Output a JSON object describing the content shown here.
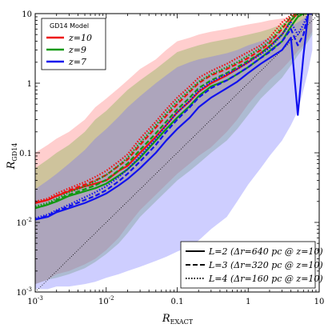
{
  "chart_data": {
    "type": "line",
    "xlabel": "R_EXACT",
    "ylabel": "R_GD14",
    "xscale": "log",
    "yscale": "log",
    "xlim": [
      0.001,
      10
    ],
    "ylim": [
      0.001,
      10
    ],
    "grid": false,
    "x_tick_labels": [
      "10^-3",
      "10^-2",
      "0.1",
      "1",
      "10"
    ],
    "y_tick_labels": [
      "10^-3",
      "10^-2",
      "0.1",
      "1",
      "10"
    ],
    "legend_top_left": {
      "position": "top-left",
      "title": "GD14 Model",
      "entries": [
        {
          "label": "z=10",
          "color": "#ee1111"
        },
        {
          "label": "z=9",
          "color": "#119911"
        },
        {
          "label": "z=7",
          "color": "#1111ee"
        }
      ]
    },
    "legend_bottom_right": {
      "position": "bottom-right",
      "entries": [
        {
          "label": "L=2 (Δr=640 pc @ z=10)",
          "style": "solid"
        },
        {
          "label": "L=3 (Δr=320 pc @ z=10)",
          "style": "dashed"
        },
        {
          "label": "L=4 (Δr=160 pc @ z=10)",
          "style": "dotted"
        }
      ]
    },
    "reference_line": {
      "style": "dotted",
      "color": "#000000",
      "x": [
        0.001,
        10
      ],
      "y": [
        0.001,
        10
      ]
    },
    "x": [
      0.001,
      0.0015,
      0.002,
      0.003,
      0.005,
      0.007,
      0.01,
      0.015,
      0.02,
      0.03,
      0.05,
      0.07,
      0.1,
      0.15,
      0.2,
      0.3,
      0.5,
      0.7,
      1.0,
      1.5,
      2.0,
      3.0,
      4.0,
      5.0,
      6.0,
      7.0,
      8.0
    ],
    "bands": [
      {
        "name": "z=10",
        "color": "#ff6666",
        "lower": [
          0.0013,
          0.0015,
          0.0018,
          0.002,
          0.0025,
          0.003,
          0.004,
          0.006,
          0.009,
          0.015,
          0.025,
          0.035,
          0.05,
          0.07,
          0.09,
          0.12,
          0.2,
          0.3,
          0.5,
          0.8,
          1.1,
          1.6,
          2.2,
          2.9,
          3.5,
          4.5,
          5.5
        ],
        "upper": [
          0.1,
          0.13,
          0.16,
          0.2,
          0.3,
          0.45,
          0.6,
          0.85,
          1.1,
          1.6,
          2.2,
          3.0,
          4.0,
          4.5,
          5.0,
          5.5,
          6.0,
          6.5,
          7.0,
          7.5,
          8.0,
          8.5,
          9.0,
          9.5,
          10.0,
          10.0,
          10.0
        ]
      },
      {
        "name": "z=9",
        "color": "#66aa33",
        "lower": [
          0.0013,
          0.0015,
          0.0016,
          0.0018,
          0.0022,
          0.0027,
          0.0035,
          0.005,
          0.007,
          0.012,
          0.02,
          0.028,
          0.04,
          0.055,
          0.07,
          0.1,
          0.15,
          0.22,
          0.35,
          0.6,
          0.8,
          1.2,
          1.8,
          2.5,
          3.2,
          4.0,
          5.0
        ],
        "upper": [
          0.06,
          0.08,
          0.1,
          0.13,
          0.2,
          0.3,
          0.4,
          0.6,
          0.8,
          1.1,
          1.6,
          2.1,
          2.8,
          3.2,
          3.5,
          3.9,
          4.3,
          4.6,
          5.0,
          5.5,
          6.0,
          7.0,
          8.0,
          9.0,
          9.5,
          10.0,
          10.0
        ]
      },
      {
        "name": "z=7",
        "color": "#6666ff",
        "lower": [
          0.0011,
          0.0011,
          0.0012,
          0.0012,
          0.0013,
          0.0014,
          0.0016,
          0.0018,
          0.002,
          0.0023,
          0.0028,
          0.0032,
          0.0038,
          0.0045,
          0.0055,
          0.008,
          0.012,
          0.02,
          0.035,
          0.06,
          0.09,
          0.15,
          0.25,
          0.4,
          0.8,
          1.5,
          3.0
        ],
        "upper": [
          0.03,
          0.04,
          0.05,
          0.07,
          0.11,
          0.16,
          0.22,
          0.33,
          0.45,
          0.65,
          1.0,
          1.3,
          1.7,
          2.0,
          2.2,
          2.4,
          2.7,
          3.0,
          3.5,
          4.0,
          4.5,
          5.5,
          6.5,
          7.5,
          8.5,
          9.5,
          10.0
        ]
      }
    ],
    "series": [
      {
        "name": "z=10, L=2",
        "color": "#ee1111",
        "style": "solid",
        "y": [
          0.019,
          0.021,
          0.024,
          0.028,
          0.033,
          0.036,
          0.04,
          0.055,
          0.065,
          0.1,
          0.17,
          0.25,
          0.38,
          0.55,
          0.75,
          1.0,
          1.3,
          1.6,
          2.0,
          2.7,
          3.4,
          5.0,
          8.0,
          10.0,
          10.0,
          10.0,
          10.0
        ]
      },
      {
        "name": "z=10, L=3",
        "color": "#ee1111",
        "style": "dashed",
        "y": [
          0.019,
          0.021,
          0.024,
          0.029,
          0.035,
          0.04,
          0.048,
          0.065,
          0.08,
          0.13,
          0.23,
          0.34,
          0.5,
          0.75,
          1.0,
          1.3,
          1.6,
          1.9,
          2.3,
          3.0,
          3.8,
          6.0,
          9.0,
          10.0,
          10.0,
          10.0,
          10.0
        ]
      },
      {
        "name": "z=10, L=4",
        "color": "#ee1111",
        "style": "dotted",
        "y": [
          0.02,
          0.022,
          0.026,
          0.031,
          0.038,
          0.045,
          0.055,
          0.075,
          0.095,
          0.16,
          0.28,
          0.42,
          0.62,
          0.9,
          1.2,
          1.5,
          1.9,
          2.3,
          2.8,
          3.5,
          4.5,
          7.5,
          9.5,
          10.0,
          10.0,
          10.0,
          10.0
        ]
      },
      {
        "name": "z=9, L=2",
        "color": "#119911",
        "style": "solid",
        "y": [
          0.016,
          0.018,
          0.02,
          0.024,
          0.028,
          0.031,
          0.036,
          0.047,
          0.058,
          0.085,
          0.15,
          0.22,
          0.32,
          0.47,
          0.65,
          0.9,
          1.1,
          1.35,
          1.7,
          2.3,
          2.9,
          4.0,
          6.5,
          9.0,
          10.0,
          10.0,
          10.0
        ]
      },
      {
        "name": "z=9, L=3",
        "color": "#119911",
        "style": "dashed",
        "y": [
          0.016,
          0.018,
          0.021,
          0.025,
          0.03,
          0.034,
          0.041,
          0.056,
          0.07,
          0.11,
          0.19,
          0.28,
          0.42,
          0.62,
          0.85,
          1.1,
          1.4,
          1.7,
          2.1,
          2.7,
          3.4,
          5.0,
          8.0,
          10.0,
          10.0,
          10.0,
          10.0
        ]
      },
      {
        "name": "z=9, L=4",
        "color": "#119911",
        "style": "dotted",
        "y": [
          0.017,
          0.019,
          0.022,
          0.027,
          0.033,
          0.039,
          0.048,
          0.066,
          0.085,
          0.14,
          0.25,
          0.37,
          0.55,
          0.8,
          1.05,
          1.35,
          1.7,
          2.0,
          2.5,
          3.2,
          4.0,
          6.5,
          9.0,
          10.0,
          10.0,
          10.0,
          10.0
        ]
      },
      {
        "name": "z=7, L=2",
        "color": "#1111ee",
        "style": "solid",
        "y": [
          0.011,
          0.012,
          0.014,
          0.016,
          0.019,
          0.022,
          0.026,
          0.034,
          0.042,
          0.06,
          0.1,
          0.15,
          0.22,
          0.32,
          0.45,
          0.62,
          0.85,
          1.05,
          1.4,
          1.9,
          2.3,
          3.0,
          4.5,
          0.35,
          2.5,
          10.0,
          10.0
        ]
      },
      {
        "name": "z=7, L=3",
        "color": "#1111ee",
        "style": "dashed",
        "y": [
          0.011,
          0.0125,
          0.0145,
          0.017,
          0.021,
          0.024,
          0.029,
          0.039,
          0.05,
          0.075,
          0.13,
          0.2,
          0.3,
          0.45,
          0.62,
          0.85,
          1.1,
          1.35,
          1.7,
          2.3,
          2.8,
          4.0,
          6.0,
          3.5,
          5.0,
          10.0,
          10.0
        ]
      },
      {
        "name": "z=7, L=4",
        "color": "#1111ee",
        "style": "dotted",
        "y": [
          0.0115,
          0.013,
          0.015,
          0.018,
          0.023,
          0.027,
          0.033,
          0.045,
          0.058,
          0.09,
          0.16,
          0.25,
          0.38,
          0.56,
          0.78,
          1.05,
          1.35,
          1.6,
          2.0,
          2.6,
          3.2,
          5.0,
          7.5,
          5.0,
          7.0,
          10.0,
          10.0
        ]
      }
    ]
  }
}
